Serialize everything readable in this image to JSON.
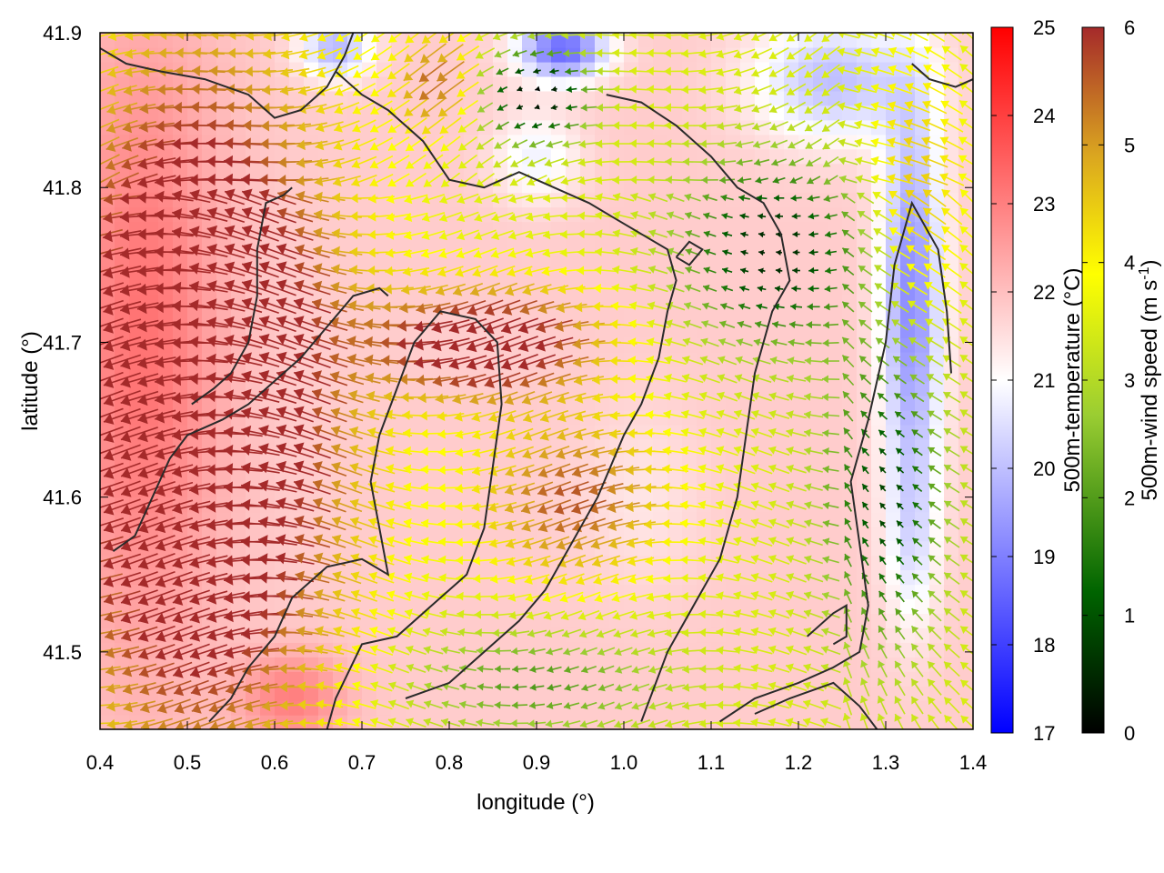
{
  "chart_data": {
    "type": "heatmap",
    "xlabel": "longitude (°)",
    "ylabel": "latitude (°)",
    "xlim": [
      0.4,
      1.4
    ],
    "ylim": [
      41.45,
      41.9
    ],
    "x_ticks": [
      "0.4",
      "0.5",
      "0.6",
      "0.7",
      "0.8",
      "0.9",
      "1.0",
      "1.1",
      "1.2",
      "1.3",
      "1.4"
    ],
    "y_ticks": [
      "41.5",
      "41.6",
      "41.7",
      "41.8",
      "41.9"
    ],
    "x_tick_values": [
      0.4,
      0.5,
      0.6,
      0.7,
      0.8,
      0.9,
      1.0,
      1.1,
      1.2,
      1.3,
      1.4
    ],
    "y_tick_values": [
      41.5,
      41.6,
      41.7,
      41.8,
      41.9
    ],
    "temperature_colorbar": {
      "label": "500m-temperature (°C)",
      "range": [
        17,
        25
      ],
      "ticks": [
        "17",
        "18",
        "19",
        "20",
        "21",
        "22",
        "23",
        "24",
        "25"
      ],
      "tick_values": [
        17,
        18,
        19,
        20,
        21,
        22,
        23,
        24,
        25
      ],
      "colors": [
        "#0000ff",
        "#ffffff",
        "#ff0000"
      ]
    },
    "wind_colorbar": {
      "label_main": "500m-wind speed (m s",
      "label_sup": "-1",
      "label_end": ")",
      "range": [
        0,
        6
      ],
      "ticks": [
        "0",
        "1",
        "2",
        "3",
        "4",
        "5",
        "6"
      ],
      "tick_values": [
        0,
        1,
        2,
        3,
        4,
        5,
        6
      ],
      "colors": [
        "#000000",
        "#006400",
        "#9acd32",
        "#ffff00",
        "#daa520",
        "#a52a2a"
      ]
    },
    "temperature_field": {
      "background": 21.8,
      "features": [
        {
          "lon": 0.45,
          "lat": 41.7,
          "sx": 0.09,
          "sy": 0.2,
          "amp": 1.4
        },
        {
          "lon": 0.62,
          "lat": 41.47,
          "sx": 0.06,
          "sy": 0.03,
          "amp": 1.2
        },
        {
          "lon": 0.93,
          "lat": 41.89,
          "sx": 0.05,
          "sy": 0.02,
          "amp": -3.2
        },
        {
          "lon": 0.67,
          "lat": 41.89,
          "sx": 0.04,
          "sy": 0.02,
          "amp": -2.0
        },
        {
          "lon": 1.33,
          "lat": 41.73,
          "sx": 0.035,
          "sy": 0.13,
          "amp": -2.6
        },
        {
          "lon": 1.24,
          "lat": 41.87,
          "sx": 0.09,
          "sy": 0.04,
          "amp": -1.8
        },
        {
          "lon": 0.9,
          "lat": 41.82,
          "sx": 0.05,
          "sy": 0.03,
          "amp": -1.0
        },
        {
          "lon": 1.33,
          "lat": 41.57,
          "sx": 0.03,
          "sy": 0.06,
          "amp": -0.9
        },
        {
          "lon": 1.02,
          "lat": 41.6,
          "sx": 0.07,
          "sy": 0.06,
          "amp": -0.4
        }
      ]
    },
    "wind_field": {
      "grid_step_lon": 0.011,
      "grid_step_lat": 0.0078,
      "regions": [
        {
          "lon": 0.52,
          "lat": 41.66,
          "sx": 0.15,
          "sy": 0.2,
          "speed": 5.8
        },
        {
          "lon": 0.85,
          "lat": 41.7,
          "sx": 0.12,
          "sy": 0.035,
          "speed": 4.0
        },
        {
          "lon": 0.95,
          "lat": 41.6,
          "sx": 0.1,
          "sy": 0.05,
          "speed": 2.4
        },
        {
          "lon": 0.79,
          "lat": 41.87,
          "sx": 0.04,
          "sy": 0.03,
          "speed": 2.2
        },
        {
          "lon": 1.34,
          "lat": 41.8,
          "sx": 0.05,
          "sy": 0.08,
          "speed": 1.2
        },
        {
          "lon": 1.17,
          "lat": 41.76,
          "sx": 0.1,
          "sy": 0.06,
          "speed": -2.8
        },
        {
          "lon": 0.9,
          "lat": 41.86,
          "sx": 0.06,
          "sy": 0.03,
          "speed": -3.2
        },
        {
          "lon": 1.3,
          "lat": 41.6,
          "sx": 0.07,
          "sy": 0.1,
          "speed": -2.4
        },
        {
          "lon": 0.9,
          "lat": 41.48,
          "sx": 0.15,
          "sy": 0.035,
          "speed": -1.4
        }
      ],
      "base_speed": 3.2,
      "base_direction": "westward"
    },
    "contours": [
      [
        [
          0.4,
          41.89
        ],
        [
          0.43,
          41.88
        ],
        [
          0.47,
          41.875
        ],
        [
          0.52,
          41.87
        ],
        [
          0.57,
          41.86
        ],
        [
          0.6,
          41.845
        ],
        [
          0.63,
          41.85
        ],
        [
          0.66,
          41.865
        ],
        [
          0.68,
          41.885
        ],
        [
          0.69,
          41.9
        ]
      ],
      [
        [
          0.525,
          41.455
        ],
        [
          0.55,
          41.47
        ],
        [
          0.57,
          41.49
        ],
        [
          0.6,
          41.51
        ],
        [
          0.62,
          41.535
        ],
        [
          0.66,
          41.555
        ],
        [
          0.7,
          41.56
        ],
        [
          0.73,
          41.55
        ],
        [
          0.72,
          41.58
        ],
        [
          0.71,
          41.61
        ],
        [
          0.72,
          41.64
        ],
        [
          0.74,
          41.67
        ],
        [
          0.76,
          41.7
        ],
        [
          0.79,
          41.72
        ],
        [
          0.83,
          41.715
        ],
        [
          0.855,
          41.7
        ],
        [
          0.86,
          41.66
        ],
        [
          0.85,
          41.62
        ],
        [
          0.84,
          41.58
        ],
        [
          0.82,
          41.55
        ],
        [
          0.78,
          41.53
        ],
        [
          0.74,
          41.51
        ],
        [
          0.7,
          41.505
        ],
        [
          0.67,
          41.47
        ],
        [
          0.66,
          41.45
        ]
      ],
      [
        [
          0.415,
          41.565
        ],
        [
          0.44,
          41.575
        ],
        [
          0.46,
          41.6
        ],
        [
          0.48,
          41.625
        ],
        [
          0.5,
          41.64
        ],
        [
          0.54,
          41.65
        ],
        [
          0.57,
          41.66
        ],
        [
          0.6,
          41.675
        ],
        [
          0.63,
          41.69
        ],
        [
          0.66,
          41.71
        ],
        [
          0.69,
          41.73
        ],
        [
          0.72,
          41.735
        ],
        [
          0.73,
          41.73
        ]
      ],
      [
        [
          0.505,
          41.66
        ],
        [
          0.53,
          41.67
        ],
        [
          0.55,
          41.68
        ],
        [
          0.57,
          41.7
        ],
        [
          0.58,
          41.73
        ],
        [
          0.58,
          41.76
        ],
        [
          0.59,
          41.79
        ],
        [
          0.61,
          41.795
        ],
        [
          0.62,
          41.8
        ]
      ],
      [
        [
          0.75,
          41.47
        ],
        [
          0.8,
          41.48
        ],
        [
          0.84,
          41.5
        ],
        [
          0.88,
          41.52
        ],
        [
          0.91,
          41.54
        ],
        [
          0.94,
          41.57
        ],
        [
          0.97,
          41.6
        ],
        [
          1.0,
          41.64
        ],
        [
          1.02,
          41.66
        ],
        [
          1.04,
          41.69
        ],
        [
          1.05,
          41.72
        ],
        [
          1.06,
          41.74
        ],
        [
          1.05,
          41.76
        ],
        [
          1.02,
          41.77
        ],
        [
          0.99,
          41.78
        ],
        [
          0.96,
          41.79
        ],
        [
          0.92,
          41.8
        ],
        [
          0.88,
          41.81
        ],
        [
          0.84,
          41.8
        ],
        [
          0.8,
          41.805
        ],
        [
          0.77,
          41.83
        ],
        [
          0.73,
          41.85
        ],
        [
          0.7,
          41.86
        ],
        [
          0.67,
          41.875
        ]
      ],
      [
        [
          1.02,
          41.455
        ],
        [
          1.05,
          41.5
        ],
        [
          1.08,
          41.53
        ],
        [
          1.11,
          41.56
        ],
        [
          1.13,
          41.6
        ],
        [
          1.14,
          41.64
        ],
        [
          1.15,
          41.68
        ],
        [
          1.17,
          41.72
        ],
        [
          1.19,
          41.74
        ],
        [
          1.18,
          41.77
        ],
        [
          1.16,
          41.79
        ],
        [
          1.13,
          41.8
        ],
        [
          1.1,
          41.82
        ],
        [
          1.06,
          41.84
        ],
        [
          1.02,
          41.855
        ],
        [
          0.98,
          41.86
        ]
      ],
      [
        [
          1.11,
          41.455
        ],
        [
          1.15,
          41.47
        ],
        [
          1.2,
          41.48
        ],
        [
          1.24,
          41.49
        ],
        [
          1.27,
          41.5
        ],
        [
          1.28,
          41.53
        ],
        [
          1.27,
          41.57
        ],
        [
          1.26,
          41.61
        ],
        [
          1.28,
          41.65
        ],
        [
          1.3,
          41.7
        ],
        [
          1.31,
          41.75
        ],
        [
          1.33,
          41.79
        ],
        [
          1.36,
          41.76
        ],
        [
          1.37,
          41.72
        ],
        [
          1.375,
          41.68
        ]
      ],
      [
        [
          1.21,
          41.51
        ],
        [
          1.24,
          41.525
        ],
        [
          1.255,
          41.53
        ],
        [
          1.255,
          41.51
        ],
        [
          1.24,
          41.505
        ]
      ],
      [
        [
          1.06,
          41.755
        ],
        [
          1.075,
          41.765
        ],
        [
          1.09,
          41.76
        ],
        [
          1.075,
          41.75
        ],
        [
          1.06,
          41.755
        ]
      ],
      [
        [
          1.33,
          41.88
        ],
        [
          1.35,
          41.87
        ],
        [
          1.38,
          41.865
        ],
        [
          1.4,
          41.87
        ]
      ],
      [
        [
          1.15,
          41.46
        ],
        [
          1.19,
          41.47
        ],
        [
          1.24,
          41.48
        ],
        [
          1.27,
          41.465
        ],
        [
          1.29,
          41.45
        ]
      ]
    ]
  }
}
